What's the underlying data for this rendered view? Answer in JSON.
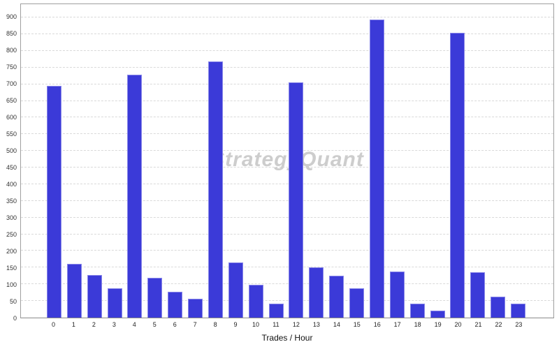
{
  "chart": {
    "watermark": "StrategyQuant",
    "colors": {
      "bar": "#3b3ad8",
      "bar_edge": "#8987e9",
      "grid": "#d9d9d9",
      "axis_border": "#9f9f9f",
      "tick_text": "#333333",
      "watermark": "#cdcdcd"
    }
  },
  "chart_data": {
    "type": "bar",
    "title": "",
    "xlabel": "Trades / Hour",
    "ylabel": "",
    "categories": [
      "0",
      "1",
      "2",
      "3",
      "4",
      "5",
      "6",
      "7",
      "8",
      "9",
      "10",
      "11",
      "12",
      "13",
      "14",
      "15",
      "16",
      "17",
      "18",
      "19",
      "20",
      "21",
      "22",
      "23"
    ],
    "values": [
      696,
      162,
      128,
      88,
      729,
      119,
      77,
      56,
      769,
      165,
      99,
      41,
      706,
      151,
      125,
      87,
      893,
      138,
      41,
      21,
      855,
      137,
      62,
      42
    ],
    "ylim": [
      0,
      940
    ],
    "y_ticks": [
      0,
      50,
      100,
      150,
      200,
      250,
      300,
      350,
      400,
      450,
      500,
      550,
      600,
      650,
      700,
      750,
      800,
      850,
      900
    ],
    "grid": "horizontal-dashed",
    "legend": "none",
    "watermark": "StrategyQuant"
  }
}
